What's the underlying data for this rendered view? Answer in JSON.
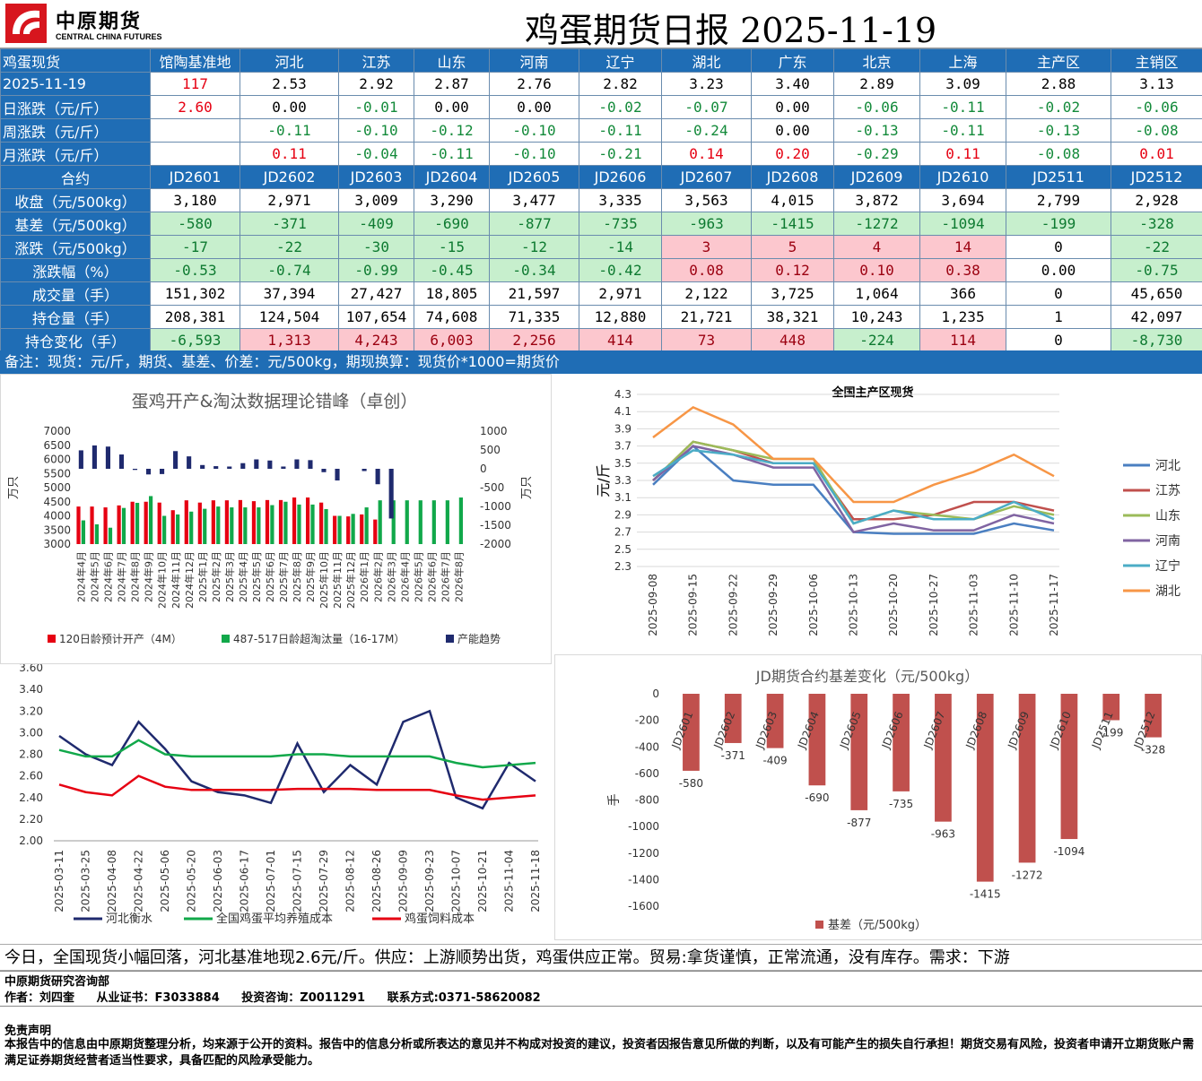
{
  "header": {
    "logo_cn": "中原期货",
    "logo_en": "CENTRAL CHINA FUTURES",
    "title": "鸡蛋期货日报 2025-11-19"
  },
  "spot_table": {
    "header": [
      "鸡蛋现货",
      "馆陶基准地",
      "河北",
      "江苏",
      "山东",
      "河南",
      "辽宁",
      "湖北",
      "广东",
      "北京",
      "上海",
      "主产区",
      "主销区"
    ],
    "rows": [
      {
        "label": "2025-11-19",
        "cells": [
          "117",
          "2.53",
          "2.92",
          "2.87",
          "2.76",
          "2.82",
          "3.23",
          "3.40",
          "2.89",
          "3.09",
          "2.88",
          "3.13"
        ]
      },
      {
        "label": "日涨跌（元/斤）",
        "cells": [
          "2.60",
          "0.00",
          "-0.01",
          "0.00",
          "0.00",
          "-0.02",
          "-0.07",
          "0.00",
          "-0.06",
          "-0.11",
          "-0.02",
          "-0.06"
        ]
      },
      {
        "label": "周涨跌（元/斤）",
        "cells": [
          "",
          "-0.11",
          "-0.10",
          "-0.12",
          "-0.10",
          "-0.11",
          "-0.24",
          "0.00",
          "-0.13",
          "-0.11",
          "-0.13",
          "-0.08"
        ]
      },
      {
        "label": "月涨跌（元/斤）",
        "cells": [
          "",
          "0.11",
          "-0.04",
          "-0.11",
          "-0.10",
          "-0.21",
          "0.14",
          "0.20",
          "-0.29",
          "0.11",
          "-0.08",
          "0.01"
        ]
      }
    ]
  },
  "futures_table": {
    "header": [
      "合约",
      "JD2601",
      "JD2602",
      "JD2603",
      "JD2604",
      "JD2605",
      "JD2606",
      "JD2607",
      "JD2608",
      "JD2609",
      "JD2610",
      "JD2511",
      "JD2512"
    ],
    "rows": [
      {
        "label": "收盘（元/500kg）",
        "cells": [
          "3,180",
          "2,971",
          "3,009",
          "3,290",
          "3,477",
          "3,335",
          "3,563",
          "4,015",
          "3,872",
          "3,694",
          "2,799",
          "2,928"
        ]
      },
      {
        "label": "基差（元/500kg）",
        "cells": [
          "-580",
          "-371",
          "-409",
          "-690",
          "-877",
          "-735",
          "-963",
          "-1415",
          "-1272",
          "-1094",
          "-199",
          "-328"
        ]
      },
      {
        "label": "涨跌（元/500kg）",
        "cells": [
          "-17",
          "-22",
          "-30",
          "-15",
          "-12",
          "-14",
          "3",
          "5",
          "4",
          "14",
          "0",
          "-22"
        ]
      },
      {
        "label": "涨跌幅（%）",
        "cells": [
          "-0.53",
          "-0.74",
          "-0.99",
          "-0.45",
          "-0.34",
          "-0.42",
          "0.08",
          "0.12",
          "0.10",
          "0.38",
          "0.00",
          "-0.75"
        ]
      },
      {
        "label": "成交量（手）",
        "cells": [
          "151,302",
          "37,394",
          "27,427",
          "18,805",
          "21,597",
          "2,971",
          "2,122",
          "3,725",
          "1,064",
          "366",
          "0",
          "45,650"
        ]
      },
      {
        "label": "持仓量（手）",
        "cells": [
          "208,381",
          "124,504",
          "107,654",
          "74,608",
          "71,335",
          "12,880",
          "21,721",
          "38,321",
          "10,243",
          "1,235",
          "1",
          "42,097"
        ]
      },
      {
        "label": "持仓变化（手）",
        "cells": [
          "-6,593",
          "1,313",
          "4,243",
          "6,003",
          "2,256",
          "414",
          "73",
          "448",
          "-224",
          "114",
          "0",
          "-8,730"
        ]
      }
    ]
  },
  "remark": "备注：现货：元/斤，期货、基差、价差：元/500kg，期现换算：现货价*1000=期货价",
  "commentary": "今日，全国现货小幅回落，河北基准地现2.6元/斤。供应：上游顺势出货，鸡蛋供应正常。贸易:拿货谨慎，正常流通，没有库存。需求：下游",
  "footer": {
    "company": "中原期货研究咨询部",
    "author": "作者：刘四奎",
    "license": "从业证书：F3033884",
    "consult": "投资咨询：Z0011291",
    "contact": "联系方式:0371-58620082",
    "disclaimer_title": "免责声明",
    "disclaimer_body": "本报告中的信息由中原期货整理分析，均来源于公开的资料。报告中的信息分析或所表达的意见并不构成对投资的建议，投资者因报告意见所做的判断，以及有可能产生的损失自行承担！期货交易有风险，投资者申请开立期货账户需满足证券期货经营者适当性要求，具备匹配的风险承受能力。"
  },
  "colors": {
    "header_blue": "#1f6db5",
    "green_cell": "#c7efcd",
    "pink_cell": "#fcc7ce",
    "up_red": "#e60012",
    "down_green": "#138a3a"
  },
  "chart_data": [
    {
      "type": "bar",
      "title": "蛋鸡开产&淘汰数据理论错峰（卓创）",
      "ylabel": "万只",
      "ylabel_right": "万只",
      "ylim": [
        3000,
        7000
      ],
      "ylim_right": [
        -2000,
        1000
      ],
      "yticks": [
        "7000",
        "6500",
        "6000",
        "5500",
        "5000",
        "4500",
        "4000",
        "3500",
        "3000"
      ],
      "yticks_right": [
        "1000",
        "500",
        "0",
        "-500",
        "-1000",
        "-1500",
        "-2000"
      ],
      "categories": [
        "2024年4月",
        "2024年5月",
        "2024年6月",
        "2024年7月",
        "2024年8月",
        "2024年9月",
        "2024年10月",
        "2024年11月",
        "2024年12月",
        "2025年1月",
        "2025年2月",
        "2025年3月",
        "2025年4月",
        "2025年5月",
        "2025年6月",
        "2025年7月",
        "2025年8月",
        "2025年9月",
        "2025年10月",
        "2025年11月",
        "2025年12月",
        "2026年1月",
        "2026年2月",
        "2026年3月",
        "2026年4月",
        "2026年5月",
        "2026年6月",
        "2026年7月",
        "2026年8月"
      ],
      "series": [
        {
          "name": "120日龄预计开产（4M）",
          "axis": "left",
          "color": "#e60012",
          "values": [
            4330,
            4330,
            4300,
            4370,
            4500,
            4500,
            4470,
            4200,
            4550,
            4470,
            4550,
            4550,
            4560,
            4520,
            4560,
            4560,
            4650,
            4650,
            4470,
            4000,
            3980,
            4050,
            3870,
            null,
            null,
            null,
            null,
            null,
            null
          ]
        },
        {
          "name": "487-517日龄超淘汰量（16-17M）",
          "axis": "left",
          "color": "#11a84a",
          "values": [
            3840,
            3700,
            3580,
            4280,
            4460,
            4700,
            4000,
            4050,
            4150,
            4250,
            4330,
            4300,
            4300,
            4300,
            4380,
            4500,
            4400,
            4400,
            4240,
            4000,
            4070,
            4300,
            4550,
            4550,
            4550,
            4550,
            4550,
            4550,
            4650
          ]
        },
        {
          "name": "产能趋势",
          "axis": "right",
          "color": "#1f2a6e",
          "values": [
            490,
            620,
            590,
            380,
            -30,
            -150,
            -140,
            470,
            330,
            100,
            70,
            60,
            150,
            250,
            220,
            60,
            250,
            230,
            -90,
            -310,
            null,
            -60,
            -410,
            -1320,
            null,
            null,
            null,
            null,
            null
          ]
        }
      ],
      "legend": "bottom"
    },
    {
      "type": "line",
      "title": "全国主产区现货",
      "ylabel": "元/斤",
      "ylim": [
        2.3,
        4.3
      ],
      "yticks": [
        "4.3",
        "4.1",
        "3.9",
        "3.7",
        "3.5",
        "3.3",
        "3.1",
        "2.9",
        "2.7",
        "2.5",
        "2.3"
      ],
      "x": [
        "2025-09-08",
        "2025-09-15",
        "2025-09-22",
        "2025-09-29",
        "2025-10-06",
        "2025-10-13",
        "2025-10-20",
        "2025-10-27",
        "2025-11-03",
        "2025-11-10",
        "2025-11-17"
      ],
      "series": [
        {
          "name": "河北",
          "color": "#4a7fc1",
          "values": [
            3.25,
            3.7,
            3.3,
            3.25,
            3.25,
            2.7,
            2.68,
            2.68,
            2.68,
            2.8,
            2.72
          ]
        },
        {
          "name": "江苏",
          "color": "#c0504d",
          "values": [
            3.3,
            3.75,
            3.65,
            3.5,
            3.5,
            2.85,
            2.85,
            2.9,
            3.05,
            3.05,
            2.95
          ]
        },
        {
          "name": "山东",
          "color": "#9bbb59",
          "values": [
            3.3,
            3.75,
            3.65,
            3.55,
            3.55,
            2.8,
            2.95,
            2.9,
            2.85,
            3.0,
            2.9
          ]
        },
        {
          "name": "河南",
          "color": "#8064a2",
          "values": [
            3.3,
            3.7,
            3.6,
            3.45,
            3.45,
            2.7,
            2.8,
            2.72,
            2.72,
            2.9,
            2.8
          ]
        },
        {
          "name": "辽宁",
          "color": "#4bacc6",
          "values": [
            3.35,
            3.65,
            3.6,
            3.5,
            3.5,
            2.8,
            2.95,
            2.85,
            2.85,
            3.05,
            2.85
          ]
        },
        {
          "name": "湖北",
          "color": "#f79646",
          "values": [
            3.8,
            4.15,
            3.95,
            3.55,
            3.55,
            3.05,
            3.05,
            3.25,
            3.4,
            3.6,
            3.35
          ]
        }
      ],
      "legend": "right"
    },
    {
      "type": "line",
      "ylim": [
        2.0,
        3.6
      ],
      "yticks": [
        "3.60",
        "3.40",
        "3.20",
        "3.00",
        "2.80",
        "2.60",
        "2.40",
        "2.20",
        "2.00"
      ],
      "x": [
        "2025-03-11",
        "2025-03-25",
        "2025-04-08",
        "2025-04-22",
        "2025-05-06",
        "2025-05-20",
        "2025-06-03",
        "2025-06-17",
        "2025-07-01",
        "2025-07-15",
        "2025-07-29",
        "2025-08-12",
        "2025-08-26",
        "2025-09-09",
        "2025-09-23",
        "2025-10-07",
        "2025-10-21",
        "2025-11-04",
        "2025-11-18"
      ],
      "series": [
        {
          "name": "河北衡水",
          "color": "#1f2a6e",
          "values": [
            2.97,
            2.8,
            2.7,
            3.1,
            2.85,
            2.55,
            2.45,
            2.42,
            2.35,
            2.9,
            2.45,
            2.7,
            2.52,
            3.1,
            3.2,
            2.4,
            2.3,
            2.72,
            2.55
          ]
        },
        {
          "name": "全国鸡蛋平均养殖成本",
          "color": "#11a84a",
          "values": [
            2.84,
            2.78,
            2.78,
            2.93,
            2.8,
            2.78,
            2.78,
            2.78,
            2.78,
            2.8,
            2.8,
            2.78,
            2.78,
            2.78,
            2.78,
            2.72,
            2.68,
            2.7,
            2.72
          ]
        },
        {
          "name": "鸡蛋饲料成本",
          "color": "#e60012",
          "values": [
            2.52,
            2.45,
            2.42,
            2.6,
            2.5,
            2.47,
            2.47,
            2.47,
            2.47,
            2.48,
            2.48,
            2.48,
            2.47,
            2.47,
            2.47,
            2.42,
            2.38,
            2.4,
            2.42
          ]
        }
      ],
      "legend": "bottom"
    },
    {
      "type": "bar",
      "title": "JD期货合约基差变化（元/500kg）",
      "ylabel": "手",
      "ylim": [
        -1600,
        0
      ],
      "yticks": [
        "0",
        "-200",
        "-400",
        "-600",
        "-800",
        "-1000",
        "-1200",
        "-1400",
        "-1600"
      ],
      "categories": [
        "JD2601",
        "JD2602",
        "JD2603",
        "JD2604",
        "JD2605",
        "JD2606",
        "JD2607",
        "JD2608",
        "JD2609",
        "JD2610",
        "JD2511",
        "JD2512"
      ],
      "series": [
        {
          "name": "基差（元/500kg）",
          "color": "#c0504d",
          "values": [
            -580,
            -371,
            -409,
            -690,
            -877,
            -735,
            -963,
            -1415,
            -1272,
            -1094,
            -199,
            -328
          ]
        }
      ],
      "legend": "bottom"
    }
  ]
}
